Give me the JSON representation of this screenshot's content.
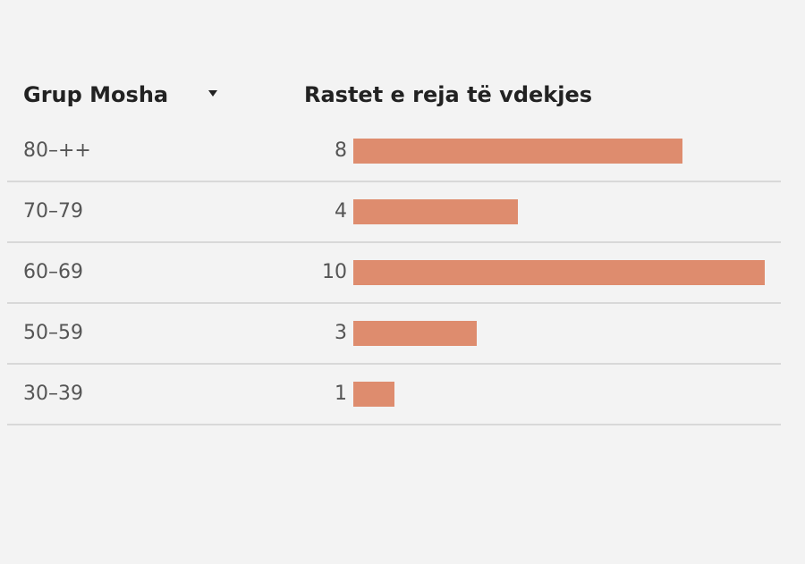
{
  "chart_data": {
    "type": "bar",
    "category_header": "Grup Mosha",
    "value_header": "Rastet e reja të vdekjes",
    "categories": [
      "80–++",
      "70–79",
      "60–69",
      "50–59",
      "30–39"
    ],
    "values": [
      8,
      4,
      10,
      3,
      1
    ],
    "color": "#de8c6e"
  }
}
